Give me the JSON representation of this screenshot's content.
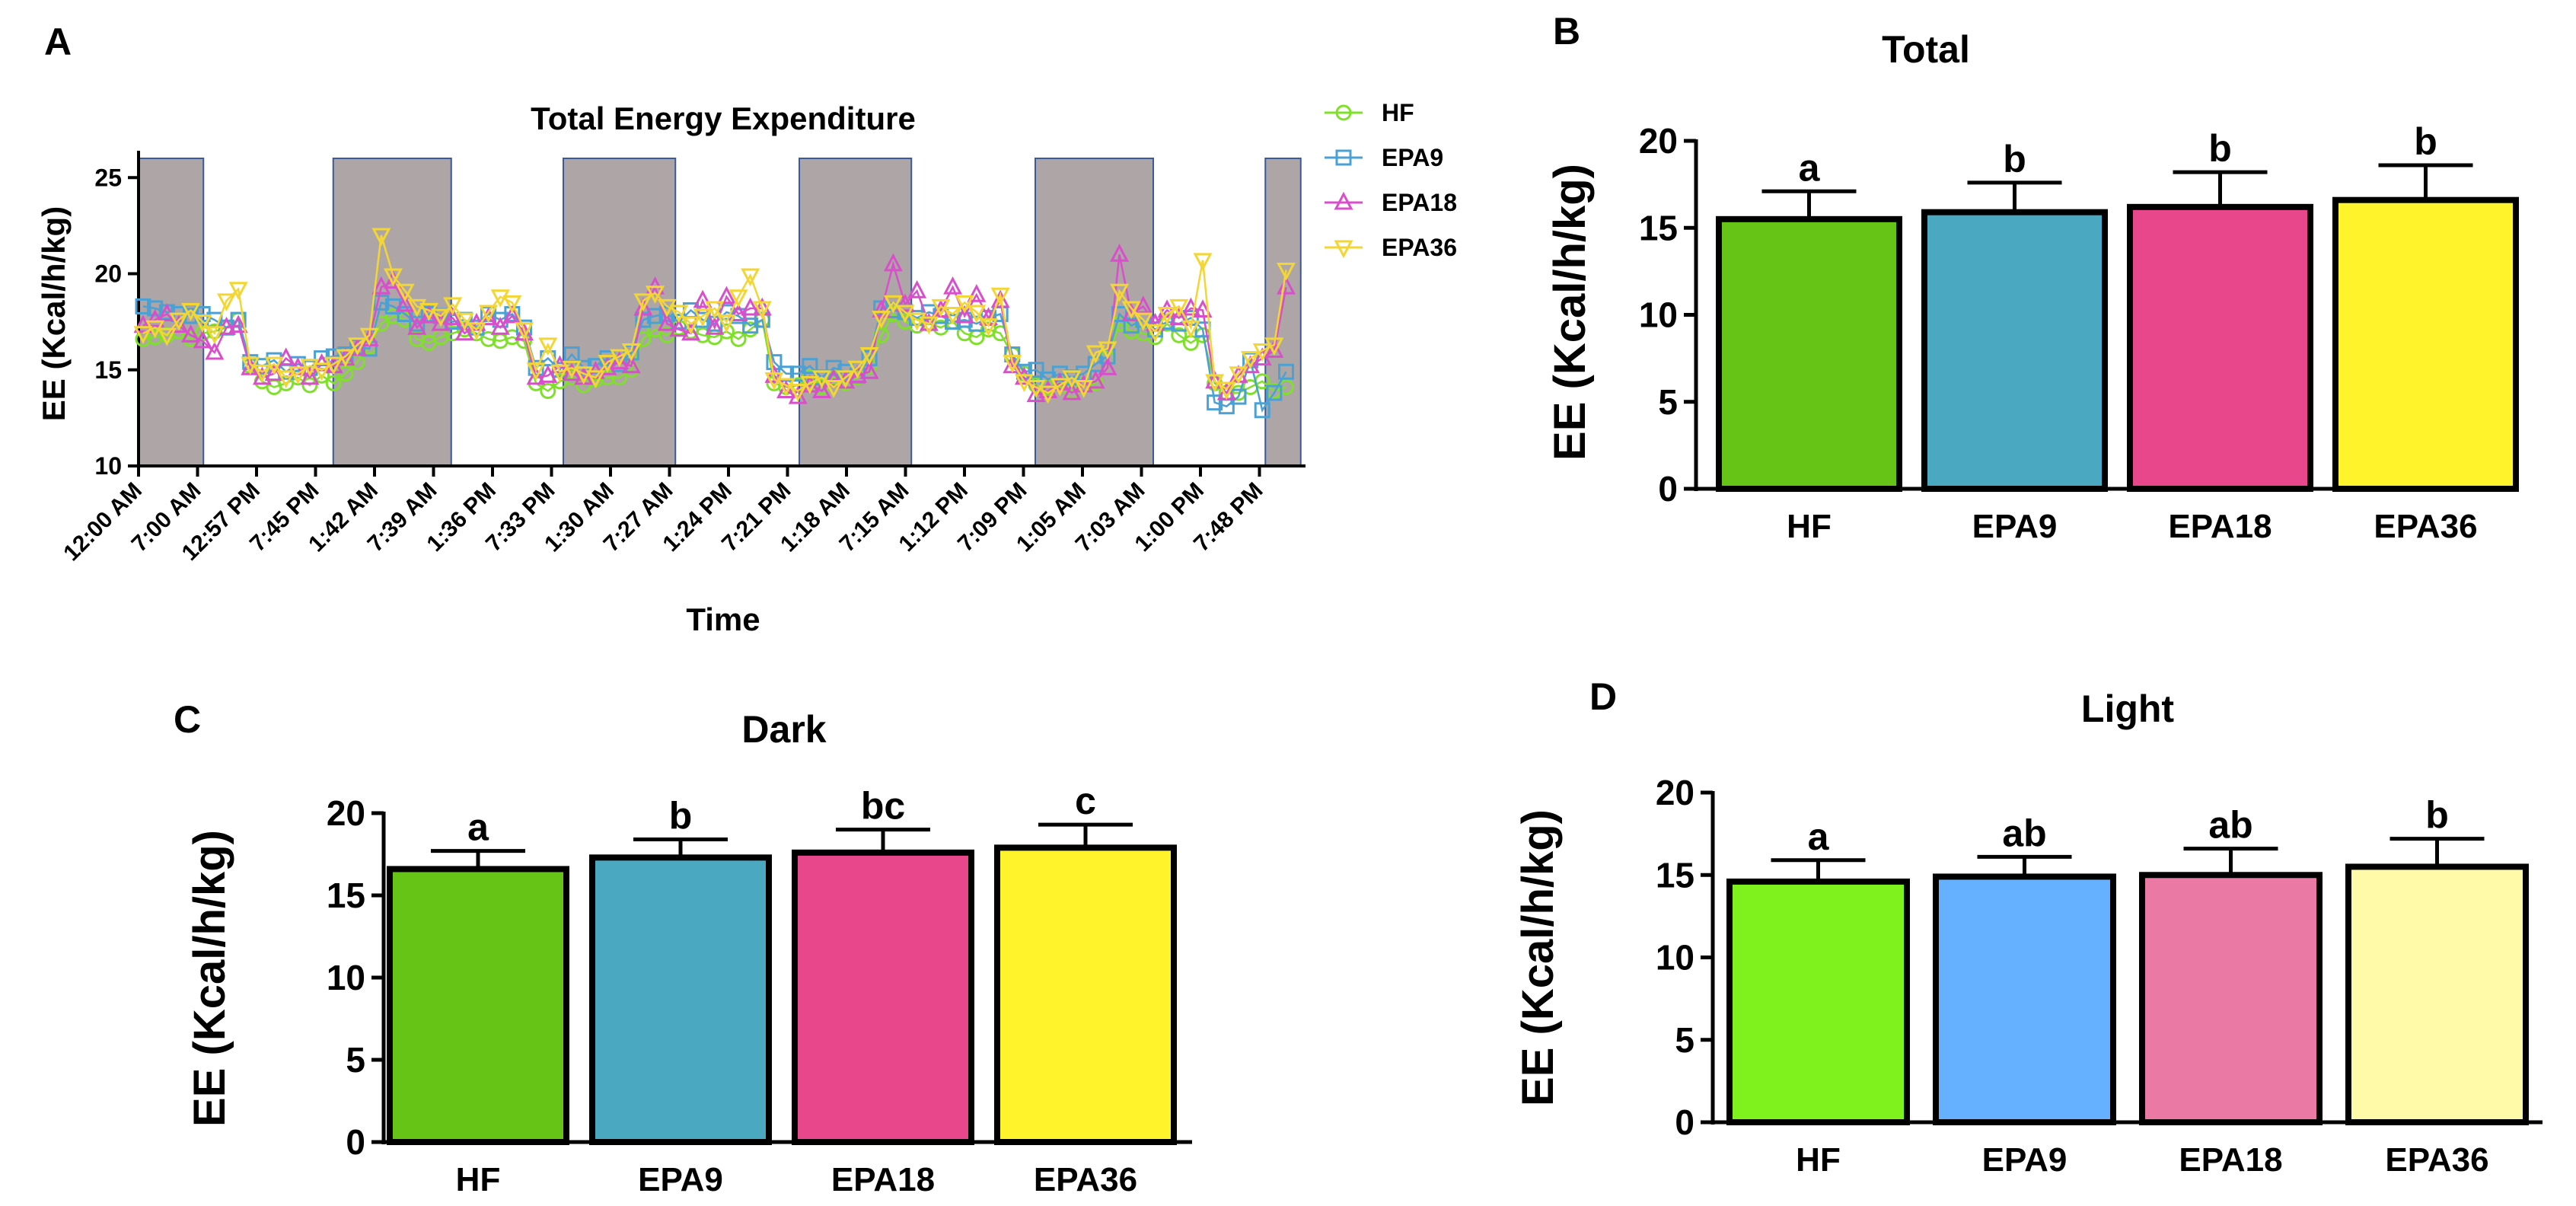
{
  "chart_data": [
    {
      "panel": "A",
      "type": "line",
      "title": "Total Energy Expenditure",
      "xlabel": "Time",
      "ylabel": "EE (Kcal/h/kg)",
      "ylim": [
        10,
        26
      ],
      "yticks": [
        10,
        15,
        20,
        25
      ],
      "x_tick_labels": [
        "12:00 AM",
        "7:00 AM",
        "12:57 PM",
        "7:45 PM",
        "1:42 AM",
        "7:39 AM",
        "1:36 PM",
        "7:33 PM",
        "1:30 AM",
        "7:27 AM",
        "1:24 PM",
        "7:21 PM",
        "1:18 AM",
        "7:15 AM",
        "1:12 PM",
        "7:09 PM",
        "1:05 AM",
        "7:03 AM",
        "1:00 PM",
        "7:48 PM"
      ],
      "dark_periods_tick_index": [
        [
          0,
          1.1
        ],
        [
          3.3,
          5.3
        ],
        [
          7.2,
          9.1
        ],
        [
          11.2,
          13.1
        ],
        [
          15.2,
          17.2
        ],
        [
          19.1,
          19.7
        ]
      ],
      "n_points": 97,
      "series": [
        {
          "name": "HF",
          "color": "#7fe02a",
          "marker": "circle",
          "values": [
            16.6,
            16.7,
            16.8,
            17.0,
            16.6,
            16.9,
            17.0,
            17.2,
            17.6,
            15.2,
            14.4,
            14.1,
            14.3,
            14.6,
            14.2,
            14.7,
            14.3,
            14.8,
            15.4,
            16.2,
            17.4,
            17.8,
            17.6,
            16.6,
            16.4,
            16.7,
            16.9,
            17.1,
            16.9,
            16.6,
            16.5,
            16.7,
            16.5,
            14.3,
            13.9,
            14.4,
            14.6,
            14.2,
            14.5,
            14.6,
            14.6,
            15.0,
            16.6,
            17.1,
            16.8,
            17.2,
            17.0,
            16.8,
            16.7,
            17.0,
            16.6,
            17.1,
            17.6,
            14.3,
            14.1,
            14.2,
            14.6,
            14.1,
            14.6,
            14.3,
            14.6,
            15.2,
            16.8,
            17.9,
            17.5,
            17.3,
            17.4,
            17.2,
            17.5,
            16.9,
            16.7,
            17.1,
            16.9,
            15.8,
            14.8,
            14.2,
            14.1,
            14.4,
            13.9,
            14.2,
            14.3,
            15.6,
            17.4,
            17.0,
            16.9,
            16.7,
            17.4,
            16.8,
            16.4,
            16.8,
            14.3,
            13.8,
            13.8,
            14.1,
            14.4,
            13.9,
            14.1
          ]
        },
        {
          "name": "EPA9",
          "color": "#4ba0d4",
          "marker": "square",
          "values": [
            18.3,
            18.2,
            18.0,
            17.9,
            17.8,
            17.9,
            17.6,
            17.2,
            17.6,
            15.4,
            15.2,
            15.5,
            14.9,
            15.3,
            15.1,
            15.6,
            15.7,
            15.8,
            16.2,
            16.1,
            18.5,
            18.3,
            17.9,
            17.4,
            17.9,
            17.8,
            17.5,
            17.6,
            17.2,
            17.9,
            17.6,
            17.9,
            17.2,
            15.1,
            15.6,
            15.0,
            15.8,
            15.1,
            15.2,
            15.6,
            15.3,
            15.9,
            17.6,
            17.8,
            17.9,
            17.5,
            18.1,
            17.6,
            17.4,
            18.0,
            17.8,
            17.3,
            17.6,
            15.4,
            14.8,
            14.8,
            15.2,
            14.6,
            15.1,
            14.9,
            14.7,
            15.6,
            18.2,
            18.1,
            18.0,
            17.7,
            18.0,
            17.8,
            17.5,
            17.6,
            17.4,
            17.7,
            17.9,
            15.8,
            14.9,
            15.0,
            14.5,
            14.8,
            14.6,
            14.8,
            15.3,
            15.7,
            17.9,
            17.3,
            17.6,
            17.1,
            17.5,
            17.4,
            17.7,
            17.1,
            13.3,
            13.1,
            13.6,
            15.5,
            12.9,
            13.8,
            14.9
          ]
        },
        {
          "name": "EPA18",
          "color": "#d94fcb",
          "marker": "triangle-up",
          "values": [
            17.3,
            17.6,
            17.9,
            17.3,
            16.8,
            16.5,
            15.9,
            17.2,
            17.3,
            15.1,
            14.6,
            14.8,
            15.6,
            15.1,
            14.6,
            15.3,
            15.2,
            15.6,
            16.1,
            16.6,
            19.3,
            19.6,
            18.4,
            17.2,
            17.8,
            17.4,
            17.7,
            16.9,
            17.4,
            17.7,
            17.2,
            17.8,
            16.9,
            14.6,
            14.7,
            15.2,
            14.8,
            14.6,
            14.9,
            15.1,
            15.4,
            15.2,
            18.2,
            19.3,
            17.4,
            17.1,
            16.9,
            18.6,
            17.2,
            18.8,
            17.9,
            18.2,
            18.2,
            14.7,
            13.9,
            13.6,
            14.2,
            13.9,
            14.5,
            14.4,
            14.7,
            14.9,
            18.1,
            20.5,
            18.4,
            19.1,
            17.4,
            18.1,
            19.3,
            17.8,
            18.9,
            17.7,
            18.6,
            15.2,
            14.6,
            13.7,
            13.9,
            14.3,
            13.8,
            14.2,
            14.4,
            15.1,
            21.0,
            17.9,
            18.3,
            17.4,
            18.1,
            17.7,
            18.2,
            18.1,
            14.4,
            13.8,
            14.7,
            15.2,
            15.6,
            16.0,
            19.3
          ]
        },
        {
          "name": "EPA36",
          "color": "#f3d634",
          "marker": "triangle-down",
          "values": [
            16.9,
            17.2,
            16.8,
            17.6,
            18.1,
            17.5,
            16.9,
            18.6,
            19.2,
            15.3,
            14.9,
            15.3,
            14.6,
            14.8,
            15.2,
            15.0,
            15.3,
            15.7,
            16.3,
            16.8,
            22.0,
            19.9,
            19.1,
            18.3,
            18.1,
            17.8,
            18.4,
            17.6,
            17.1,
            18.0,
            18.8,
            18.5,
            17.1,
            15.0,
            16.3,
            14.9,
            15.1,
            14.8,
            14.6,
            15.4,
            15.7,
            16.0,
            18.6,
            19.0,
            18.3,
            18.0,
            17.4,
            17.8,
            18.2,
            17.5,
            18.8,
            19.9,
            18.2,
            14.5,
            14.2,
            13.9,
            14.3,
            14.6,
            14.1,
            14.6,
            15.1,
            15.8,
            17.7,
            18.5,
            18.0,
            17.6,
            17.4,
            18.3,
            17.9,
            18.5,
            18.0,
            17.3,
            18.9,
            15.4,
            14.4,
            14.1,
            13.8,
            14.2,
            14.6,
            14.1,
            15.9,
            16.1,
            19.1,
            18.2,
            17.6,
            17.0,
            17.9,
            18.3,
            17.2,
            20.7,
            14.4,
            14.0,
            14.8,
            15.6,
            16.0,
            16.3,
            20.2
          ]
        }
      ]
    },
    {
      "panel": "B",
      "type": "bar",
      "title": "Total",
      "ylabel": "EE (Kcal/h/kg)",
      "ylim": [
        0,
        20
      ],
      "yticks": [
        0,
        5,
        10,
        15,
        20
      ],
      "categories": [
        "HF",
        "EPA9",
        "EPA18",
        "EPA36"
      ],
      "values": [
        15.5,
        15.9,
        16.2,
        16.6
      ],
      "errors": [
        1.6,
        1.7,
        2.0,
        2.0
      ],
      "letters": [
        "a",
        "b",
        "b",
        "b"
      ],
      "colors": [
        "#66c417",
        "#4aa8c0",
        "#e8478c",
        "#fff42c"
      ]
    },
    {
      "panel": "C",
      "type": "bar",
      "title": "Dark",
      "ylabel": "EE (Kcal/h/kg)",
      "ylim": [
        0,
        20
      ],
      "yticks": [
        0,
        5,
        10,
        15,
        20
      ],
      "categories": [
        "HF",
        "EPA9",
        "EPA18",
        "EPA36"
      ],
      "values": [
        16.6,
        17.3,
        17.6,
        17.9
      ],
      "errors": [
        1.1,
        1.1,
        1.4,
        1.4
      ],
      "letters": [
        "a",
        "b",
        "bc",
        "c"
      ],
      "colors": [
        "#66c417",
        "#4aa8c0",
        "#e8478c",
        "#fff42c"
      ]
    },
    {
      "panel": "D",
      "type": "bar",
      "title": "Light",
      "ylabel": "EE (Kcal/h/kg)",
      "ylim": [
        0,
        20
      ],
      "yticks": [
        0,
        5,
        10,
        15,
        20
      ],
      "categories": [
        "HF",
        "EPA9",
        "EPA18",
        "EPA36"
      ],
      "values": [
        14.6,
        14.9,
        15.0,
        15.5
      ],
      "errors": [
        1.3,
        1.2,
        1.6,
        1.7
      ],
      "letters": [
        "a",
        "ab",
        "ab",
        "b"
      ],
      "colors": [
        "#7ff21e",
        "#66b1ff",
        "#ea7aa3",
        "#fffaa8"
      ]
    }
  ],
  "panel_letters": {
    "a": "A",
    "b": "B",
    "c": "C",
    "d": "D"
  }
}
